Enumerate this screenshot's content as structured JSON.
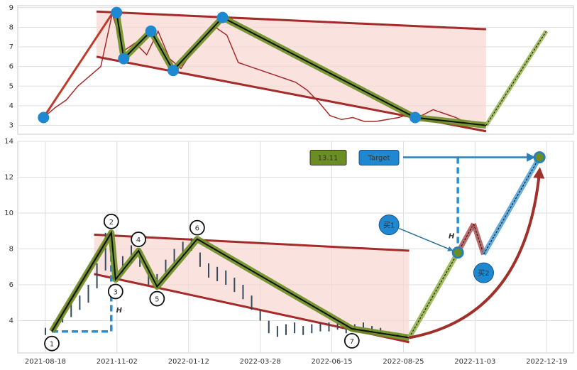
{
  "chart_data": [
    {
      "type": "line",
      "xlim": [
        -18,
        370
      ],
      "ylim": [
        2.55,
        9.1
      ],
      "yticks": [
        3,
        4,
        5,
        6,
        7,
        8,
        9
      ],
      "grid": true,
      "channel": {
        "x": [
          37,
          309
        ],
        "upper": [
          8.8,
          7.9
        ],
        "lower": [
          6.5,
          2.7
        ],
        "color": "#a52a2a",
        "fill": "#f8d7d0"
      },
      "price": {
        "color": "#a52a2a",
        "x": [
          0,
          8,
          16,
          24,
          32,
          40,
          48,
          56,
          64,
          72,
          80,
          88,
          96,
          104,
          112,
          120,
          128,
          136,
          144,
          152,
          160,
          168,
          176,
          184,
          192,
          200,
          208,
          216,
          224,
          232,
          240,
          248,
          256,
          264,
          272,
          280,
          288,
          296,
          304
        ],
        "values": [
          3.4,
          3.9,
          4.3,
          5.0,
          5.5,
          6.0,
          8.7,
          6.8,
          7.2,
          6.6,
          7.8,
          6.4,
          5.9,
          6.8,
          7.5,
          8.0,
          7.6,
          6.2,
          6.0,
          5.8,
          5.6,
          5.4,
          5.2,
          4.8,
          4.2,
          3.5,
          3.3,
          3.4,
          3.2,
          3.2,
          3.3,
          3.4,
          3.6,
          3.5,
          3.8,
          3.6,
          3.4,
          3.1,
          3.0
        ]
      },
      "rise": {
        "color": "#c0392b",
        "x": [
          0,
          48
        ],
        "values": [
          3.4,
          8.7
        ]
      },
      "wave": {
        "color": "#6b8e23",
        "x": [
          51,
          56,
          75,
          90.5,
          125,
          259.5,
          309
        ],
        "values": [
          8.75,
          6.4,
          7.8,
          5.8,
          8.5,
          3.4,
          3.0
        ]
      },
      "points": {
        "color": "#1e88d0",
        "x": [
          0,
          51,
          56,
          75,
          90.5,
          125,
          259.5
        ],
        "values": [
          3.4,
          8.75,
          6.4,
          7.8,
          5.8,
          8.5,
          3.4
        ]
      },
      "projection": {
        "color": "#8fb040",
        "x": [
          309,
          351
        ],
        "values": [
          3.0,
          7.8
        ]
      }
    },
    {
      "type": "line",
      "xlim": [
        -19.3,
        368.7
      ],
      "ylim": [
        2.2,
        14
      ],
      "yticks": [
        4,
        6,
        8,
        10,
        12,
        14
      ],
      "grid": true,
      "xticks": [
        {
          "value": 0,
          "label": "2021-08-18"
        },
        {
          "value": 50,
          "label": "2021-11-02"
        },
        {
          "value": 100,
          "label": "2022-01-12"
        },
        {
          "value": 150,
          "label": "2022-03-28"
        },
        {
          "value": 200,
          "label": "2022-06-15"
        },
        {
          "value": 250,
          "label": "2022-08-25"
        },
        {
          "value": 300,
          "label": "2022-11-03"
        },
        {
          "value": 350,
          "label": "2022-12-19"
        }
      ],
      "channel": {
        "x": [
          34,
          254
        ],
        "upper": [
          8.8,
          7.9
        ],
        "lower": [
          6.6,
          2.8
        ],
        "color": "#a52a2a",
        "fill": "#f8d7d0"
      },
      "candles": {
        "color": "#34495e",
        "x": [
          0,
          6,
          12,
          18,
          24,
          30,
          36,
          42,
          48,
          54,
          60,
          66,
          72,
          78,
          84,
          90,
          96,
          102,
          108,
          114,
          120,
          126,
          132,
          138,
          144,
          150,
          156,
          162,
          168,
          174,
          180,
          186,
          192,
          198,
          204,
          210,
          216,
          222,
          228,
          234,
          240,
          246,
          252
        ],
        "low": [
          3.2,
          3.4,
          3.9,
          4.2,
          4.6,
          5.0,
          5.8,
          6.8,
          6.3,
          6.6,
          7.2,
          7.0,
          6.0,
          5.8,
          6.6,
          7.2,
          7.6,
          7.9,
          7.0,
          6.4,
          6.2,
          6.0,
          5.6,
          5.2,
          4.6,
          4.0,
          3.3,
          3.1,
          3.2,
          3.3,
          3.2,
          3.3,
          3.4,
          3.4,
          3.5,
          3.3,
          3.4,
          3.6,
          3.4,
          3.3,
          3.2,
          3.1,
          3.0
        ],
        "high": [
          3.6,
          3.9,
          4.5,
          5.0,
          5.4,
          6.0,
          7.2,
          8.9,
          7.4,
          7.6,
          8.2,
          8.0,
          7.0,
          6.6,
          7.4,
          8.0,
          8.4,
          8.6,
          7.8,
          7.2,
          7.0,
          6.8,
          6.4,
          6.0,
          5.4,
          4.6,
          4.0,
          3.7,
          3.8,
          3.9,
          3.7,
          3.8,
          3.9,
          3.9,
          3.9,
          3.8,
          3.8,
          3.9,
          3.7,
          3.6,
          3.4,
          3.3,
          3.2
        ]
      },
      "rise": {
        "color": "#c0392b",
        "x": [
          4.5,
          46
        ],
        "values": [
          3.4,
          8.9
        ]
      },
      "wave": {
        "color": "#6b8e23",
        "x": [
          4.5,
          46,
          49,
          65,
          78,
          106,
          214,
          254
        ],
        "values": [
          3.4,
          8.9,
          6.3,
          7.9,
          5.9,
          8.55,
          3.55,
          3.05
        ],
        "labels": [
          "1",
          "2",
          "3",
          "4",
          "5",
          "6",
          "7",
          null
        ]
      },
      "measure_label": "H",
      "projection": {
        "colors": [
          "#8fb040",
          "#b05050",
          "#b05050",
          "#4a9fd8"
        ],
        "x": [
          254,
          288,
          299,
          306,
          345
        ],
        "values": [
          3.05,
          7.8,
          9.4,
          7.7,
          13.11
        ]
      },
      "target": {
        "value": 13.11,
        "label": "Target"
      },
      "buy": [
        {
          "label": "买1",
          "x": 288,
          "value": 7.8
        },
        {
          "label": "买2",
          "x": 306,
          "value": 7.7
        }
      ]
    }
  ]
}
